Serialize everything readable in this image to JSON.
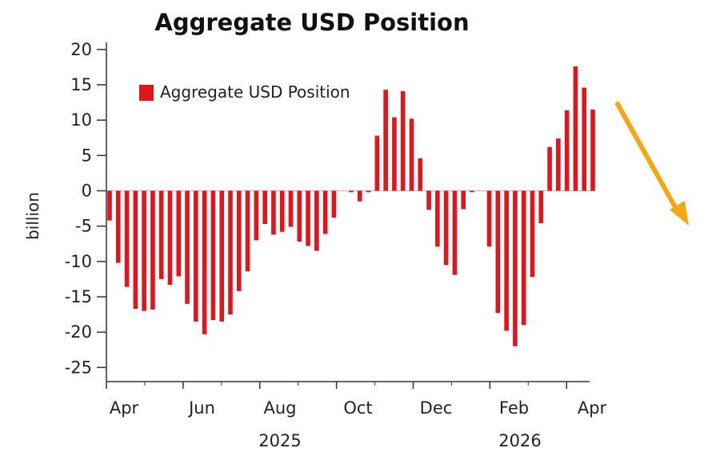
{
  "chart_data": {
    "type": "bar",
    "title": "Aggregate USD Position",
    "ylabel": "billion",
    "xlabel": "",
    "ylim": [
      -27,
      21
    ],
    "y_ticks": [
      20,
      15,
      10,
      5,
      0,
      -5,
      -10,
      -15,
      -20,
      -25
    ],
    "x_tick_labels": [
      "Apr",
      "Jun",
      "Aug",
      "Oct",
      "Dec",
      "Feb",
      "Apr"
    ],
    "year_labels": [
      "2025",
      "2026"
    ],
    "legend": {
      "label": "Aggregate USD Position",
      "placement": "top-left"
    },
    "grid": false,
    "series": [
      {
        "name": "Aggregate USD Position",
        "color": "#e0161c",
        "values": [
          -4.2,
          -10.2,
          -13.6,
          -16.7,
          -17.0,
          -16.8,
          -12.5,
          -13.3,
          -12.1,
          -16.0,
          -18.5,
          -20.3,
          -18.3,
          -18.5,
          -17.5,
          -14.2,
          -11.4,
          -7.0,
          -4.7,
          -6.2,
          -5.8,
          -5.1,
          -7.2,
          -7.8,
          -8.5,
          -6.1,
          -3.8,
          0,
          -0.2,
          -1.5,
          -0.2,
          7.8,
          14.3,
          10.4,
          14.1,
          10.2,
          4.6,
          -2.7,
          -7.9,
          -10.5,
          -11.9,
          -2.6,
          -0.2,
          0,
          -7.9,
          -17.3,
          -19.8,
          -22.0,
          -19.0,
          -12.2,
          -4.6,
          6.2,
          7.4,
          11.4,
          17.6,
          14.6,
          11.5
        ]
      }
    ]
  },
  "annotation": {
    "color": "#f3a712",
    "arrow": "down-right-arrow"
  }
}
